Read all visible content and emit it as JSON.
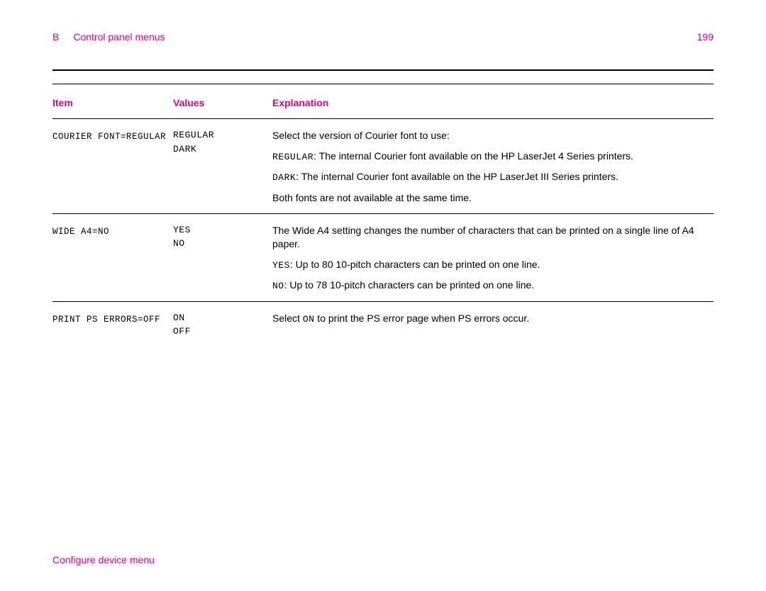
{
  "header": {
    "section_letter": "B",
    "section_title": "Control panel menus",
    "page_number": "199"
  },
  "table": {
    "headers": {
      "item": "Item",
      "values": "Values",
      "explanation": "Explanation"
    },
    "rows": [
      {
        "item": "COURIER FONT=REGULAR",
        "values": [
          "REGULAR",
          "DARK"
        ],
        "explanation": [
          {
            "type": "plain",
            "text": "Select the version of Courier font to use:"
          },
          {
            "type": "labeled",
            "label": "REGULAR",
            "text": ": The internal Courier font available on the HP LaserJet 4 Series printers."
          },
          {
            "type": "labeled",
            "label": "DARK",
            "text": ": The internal Courier font available on the HP LaserJet III Series printers."
          },
          {
            "type": "plain",
            "text": "Both fonts are not available at the same time."
          }
        ]
      },
      {
        "item": "WIDE A4=NO",
        "values": [
          "YES",
          "NO"
        ],
        "explanation": [
          {
            "type": "plain",
            "text": "The Wide A4 setting changes the number of characters that can be printed on a single line of A4 paper."
          },
          {
            "type": "labeled",
            "label": "YES",
            "text": ": Up to 80 10-pitch characters can be printed on one line."
          },
          {
            "type": "labeled",
            "label": "NO",
            "text": ": Up to 78 10-pitch characters can be printed on one line."
          }
        ]
      },
      {
        "item": "PRINT PS ERRORS=OFF",
        "values": [
          "ON",
          "OFF"
        ],
        "explanation": [
          {
            "type": "mixed",
            "pre": "Select ",
            "label": "ON",
            "post": " to print the PS error page when PS errors occur."
          }
        ]
      }
    ]
  },
  "footer": {
    "text": "Configure device menu"
  }
}
